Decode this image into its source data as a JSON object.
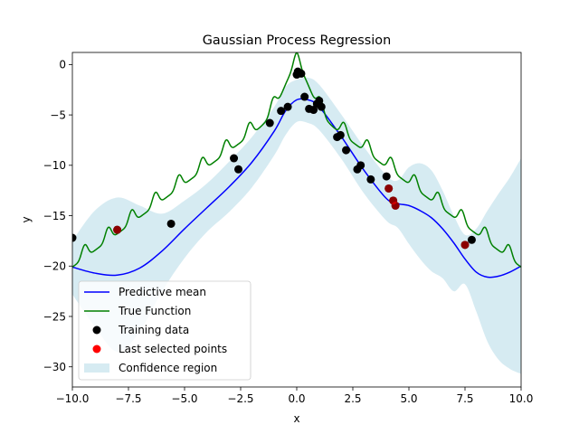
{
  "chart_data": {
    "type": "line",
    "title": "Gaussian Process Regression",
    "xlabel": "x",
    "ylabel": "y",
    "xlim": [
      -10,
      10
    ],
    "ylim": [
      -32,
      1.2
    ],
    "xticks": [
      -10,
      -7.5,
      -5,
      -2.5,
      0,
      2.5,
      5,
      7.5,
      10
    ],
    "xtick_labels": [
      "−10.0",
      "−7.5",
      "−5.0",
      "−2.5",
      "0.0",
      "2.5",
      "5.0",
      "7.5",
      "10.0"
    ],
    "yticks": [
      0,
      -5,
      -10,
      -15,
      -20,
      -25,
      -30
    ],
    "ytick_labels": [
      "0",
      "−5",
      "−10",
      "−15",
      "−20",
      "−25",
      "−30"
    ],
    "grid": false,
    "legend_position": "lower-left",
    "colors": {
      "mean": "#0000ff",
      "true": "#008000",
      "training": "#000000",
      "selected": "#ff0000",
      "confidence": "#add8e6"
    },
    "series": [
      {
        "name": "Predictive mean",
        "x": [
          -10,
          -9,
          -8,
          -7,
          -6,
          -5,
          -4,
          -3,
          -2,
          -1,
          -0.5,
          0,
          0.5,
          1,
          2,
          3,
          4,
          4.5,
          5,
          5.5,
          6,
          6.5,
          7,
          7.5,
          8,
          8.5,
          9,
          9.5,
          10
        ],
        "y": [
          -20.1,
          -20.7,
          -20.9,
          -20.2,
          -18.5,
          -16.3,
          -14.2,
          -12.1,
          -9.7,
          -6.6,
          -4.6,
          -3.5,
          -3.5,
          -4.2,
          -7.2,
          -10.5,
          -13.3,
          -13.8,
          -14.0,
          -14.5,
          -15.2,
          -16.3,
          -17.7,
          -19.3,
          -20.6,
          -21.1,
          -21.0,
          -20.6,
          -20.0
        ]
      },
      {
        "name": "Confidence region",
        "x": [
          -10,
          -9,
          -8,
          -7,
          -6,
          -5,
          -4,
          -3,
          -2,
          -1,
          -0.5,
          0,
          0.5,
          1,
          2,
          3,
          4,
          4.5,
          5,
          5.5,
          6,
          6.5,
          7,
          7.5,
          8,
          8.5,
          9,
          9.5,
          10
        ],
        "upper": [
          -17.5,
          -14.5,
          -13.2,
          -14.0,
          -14.8,
          -13.5,
          -11.8,
          -9.6,
          -7.2,
          -4.2,
          -2.2,
          -1.5,
          -1.3,
          -2.0,
          -5.0,
          -8.2,
          -11.0,
          -11.5,
          -10.2,
          -9.8,
          -10.5,
          -12.5,
          -15.0,
          -16.9,
          -16.3,
          -14.5,
          -12.8,
          -11.2,
          -9.3
        ],
        "lower": [
          -22.8,
          -26.0,
          -28.5,
          -26.5,
          -22.5,
          -19.2,
          -16.6,
          -14.6,
          -12.2,
          -9.0,
          -7.0,
          -5.7,
          -5.8,
          -6.5,
          -9.4,
          -12.8,
          -15.5,
          -16.2,
          -17.8,
          -19.3,
          -20.5,
          -21.2,
          -22.5,
          -21.8,
          -24.5,
          -27.5,
          -29.3,
          -30.2,
          -30.7
        ]
      },
      {
        "name": "True Function",
        "function": "-|x|*1.65 - 3.6 + 3.5*exp(-x^2/0.7) + 1.3*(0.5+0.5*cos(2*pi*x/1.05))^3",
        "note_points_x_range": [
          -10,
          10
        ]
      }
    ],
    "training_data": {
      "name": "Training data",
      "points": [
        [
          -10.0,
          -17.2
        ],
        [
          -8.0,
          -16.4
        ],
        [
          -5.6,
          -15.8
        ],
        [
          -2.8,
          -9.3
        ],
        [
          -2.6,
          -10.4
        ],
        [
          -1.2,
          -5.8
        ],
        [
          -0.7,
          -4.6
        ],
        [
          -0.4,
          -4.2
        ],
        [
          0.0,
          -1.0
        ],
        [
          0.05,
          -0.7
        ],
        [
          0.2,
          -0.9
        ],
        [
          0.35,
          -3.2
        ],
        [
          0.55,
          -4.4
        ],
        [
          0.75,
          -4.5
        ],
        [
          0.9,
          -3.9
        ],
        [
          1.0,
          -3.6
        ],
        [
          1.1,
          -4.2
        ],
        [
          1.8,
          -7.2
        ],
        [
          1.95,
          -7.0
        ],
        [
          2.2,
          -8.5
        ],
        [
          2.7,
          -10.4
        ],
        [
          2.85,
          -10.0
        ],
        [
          3.3,
          -11.4
        ],
        [
          4.0,
          -11.1
        ],
        [
          4.1,
          -12.3
        ],
        [
          4.3,
          -13.5
        ],
        [
          4.4,
          -14.0
        ],
        [
          7.5,
          -17.9
        ],
        [
          7.8,
          -17.4
        ]
      ]
    },
    "selected_points": {
      "name": "Last selected points",
      "points": [
        [
          -8.0,
          -16.4
        ],
        [
          4.1,
          -12.3
        ],
        [
          4.3,
          -13.5
        ],
        [
          4.4,
          -14.0
        ],
        [
          7.5,
          -17.9
        ]
      ]
    },
    "legend": [
      "Predictive mean",
      "True Function",
      "Training data",
      "Last selected points",
      "Confidence region"
    ]
  }
}
